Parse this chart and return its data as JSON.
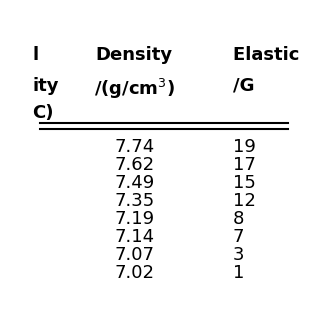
{
  "col1_header_line1": "l",
  "col1_header_line2": "ity",
  "col1_header_line3": "C)",
  "col2_header_line1": "Density",
  "col2_header_line2": "/(g/cm³)",
  "col3_header_line1": "Elastic ",
  "col3_header_line2": "/G",
  "density_values": [
    "7.74",
    "7.62",
    "7.49",
    "7.35",
    "7.19",
    "7.14",
    "7.07",
    "7.02"
  ],
  "elastic_values": [
    "19",
    "17",
    "15",
    "12",
    "8 ",
    "7 ",
    "3 ",
    "1 "
  ],
  "bg_color": "#ffffff",
  "text_color": "#000000",
  "header_fontsize": 13,
  "data_fontsize": 13,
  "figsize": [
    3.2,
    3.2
  ],
  "dpi": 100
}
